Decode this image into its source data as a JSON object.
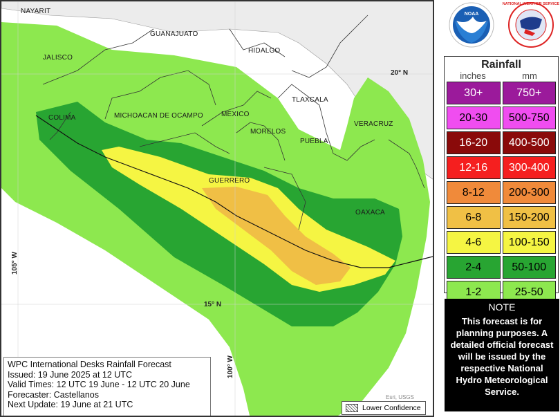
{
  "map": {
    "states": [
      {
        "name": "NAYARIT"
      },
      {
        "name": "GUANAJUATO"
      },
      {
        "name": "JALISCO"
      },
      {
        "name": "HIDALGO"
      },
      {
        "name": "TLAXCALA"
      },
      {
        "name": "COLIMA"
      },
      {
        "name": "MICHOACAN DE OCAMPO"
      },
      {
        "name": "MEXICO"
      },
      {
        "name": "MORELOS"
      },
      {
        "name": "VERACRUZ"
      },
      {
        "name": "PUEBLA"
      },
      {
        "name": "GUERRERO"
      },
      {
        "name": "OAXACA"
      }
    ],
    "coords": {
      "lat20": "20° N",
      "lat15": "15° N",
      "lon105": "105° W",
      "lon100": "100° W"
    },
    "attribution": "Esri, USGS",
    "lower_confidence": "Lower Confidence",
    "colors": {
      "land": "#f2f2f2",
      "light_green": "#8de84f",
      "dark_green": "#28a532",
      "yellow": "#f5f543",
      "orange": "#f0bf45"
    }
  },
  "info": {
    "line1": "WPC International Desks Rainfall Forecast",
    "line2": "Issued: 19 June 2025 at 12 UTC",
    "line3": "Valid Times: 12 UTC 19 June - 12 UTC 20 June",
    "line4": "Forecaster: Castellanos",
    "line5": "Next Update: 19 June at 21 UTC"
  },
  "logos": {
    "noaa": "NOAA",
    "nws": "NATIONAL WEATHER SERVICE"
  },
  "legend": {
    "title": "Rainfall",
    "unit_in": "inches",
    "unit_mm": "mm",
    "rows": [
      {
        "in": "30+",
        "mm": "750+",
        "color": "#9b1a9b",
        "text": "#ffffff"
      },
      {
        "in": "20-30",
        "mm": "500-750",
        "color": "#f04df0",
        "text": "#000000"
      },
      {
        "in": "16-20",
        "mm": "400-500",
        "color": "#8a0a0a",
        "text": "#ffffff"
      },
      {
        "in": "12-16",
        "mm": "300-400",
        "color": "#f51f1f",
        "text": "#ffffff"
      },
      {
        "in": "8-12",
        "mm": "200-300",
        "color": "#f08a3a",
        "text": "#000000"
      },
      {
        "in": "6-8",
        "mm": "150-200",
        "color": "#f0c045",
        "text": "#000000"
      },
      {
        "in": "4-6",
        "mm": "100-150",
        "color": "#f5f543",
        "text": "#000000"
      },
      {
        "in": "2-4",
        "mm": "50-100",
        "color": "#28a532",
        "text": "#000000"
      },
      {
        "in": "1-2",
        "mm": "25-50",
        "color": "#8de84f",
        "text": "#000000"
      }
    ]
  },
  "note": {
    "title": "NOTE",
    "body": "This forecast is for planning purposes. A detailed official forecast will be issued by the respective National Hydro Meteorological Service."
  }
}
